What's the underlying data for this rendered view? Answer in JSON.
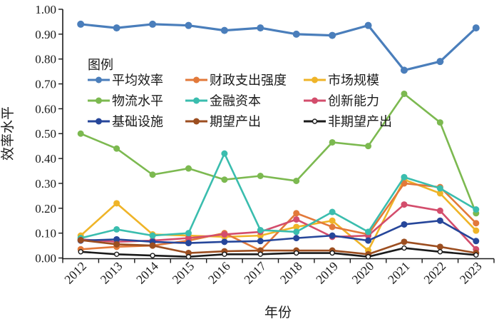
{
  "chart_data": {
    "type": "line",
    "title": "",
    "xlabel": "年份",
    "ylabel": "效率水平",
    "legend_title": "图例",
    "ylim": [
      0.0,
      1.0
    ],
    "ytick_step": 0.1,
    "grid": false,
    "legend_position": "inside-top-left",
    "categories": [
      "2012",
      "2013",
      "2014",
      "2015",
      "2016",
      "2017",
      "2018",
      "2019",
      "2020",
      "2021",
      "2022",
      "2023"
    ],
    "series": [
      {
        "name": "平均效率",
        "color": "#4a7ebb",
        "marker": "filled-circle",
        "values": [
          0.94,
          0.925,
          0.94,
          0.935,
          0.915,
          0.925,
          0.9,
          0.895,
          0.935,
          0.755,
          0.79,
          0.925
        ]
      },
      {
        "name": "财政支出强度",
        "color": "#e2793a",
        "marker": "filled-circle",
        "values": [
          0.035,
          0.045,
          0.05,
          0.07,
          0.1,
          0.03,
          0.18,
          0.125,
          0.095,
          0.3,
          0.285,
          0.14
        ]
      },
      {
        "name": "市场规模",
        "color": "#efb428",
        "marker": "filled-circle",
        "values": [
          0.09,
          0.22,
          0.095,
          0.09,
          0.085,
          0.09,
          0.125,
          0.15,
          0.03,
          0.315,
          0.26,
          0.11
        ]
      },
      {
        "name": "物流水平",
        "color": "#7cb950",
        "marker": "filled-circle",
        "values": [
          0.5,
          0.44,
          0.335,
          0.36,
          0.315,
          0.33,
          0.31,
          0.465,
          0.45,
          0.66,
          0.545,
          0.18
        ]
      },
      {
        "name": "金融资本",
        "color": "#3abdae",
        "marker": "filled-circle",
        "values": [
          0.08,
          0.115,
          0.09,
          0.1,
          0.42,
          0.112,
          0.105,
          0.185,
          0.105,
          0.325,
          0.28,
          0.195
        ]
      },
      {
        "name": "创新能力",
        "color": "#d34d6c",
        "marker": "filled-circle",
        "values": [
          0.075,
          0.065,
          0.07,
          0.08,
          0.095,
          0.105,
          0.155,
          0.085,
          0.09,
          0.215,
          0.19,
          0.035
        ]
      },
      {
        "name": "基础设施",
        "color": "#26469a",
        "marker": "filled-circle",
        "values": [
          0.07,
          0.075,
          0.065,
          0.06,
          0.065,
          0.068,
          0.08,
          0.09,
          0.07,
          0.135,
          0.15,
          0.068
        ]
      },
      {
        "name": "期望产出",
        "color": "#9c4e20",
        "marker": "filled-circle",
        "values": [
          0.072,
          0.055,
          0.05,
          0.02,
          0.027,
          0.03,
          0.03,
          0.03,
          0.015,
          0.065,
          0.045,
          0.02
        ]
      },
      {
        "name": "非期望产出",
        "color": "#1a1a1a",
        "marker": "open-circle",
        "values": [
          0.025,
          0.015,
          0.01,
          0.005,
          0.015,
          0.015,
          0.02,
          0.02,
          0.005,
          0.04,
          0.025,
          0.012
        ]
      }
    ]
  }
}
